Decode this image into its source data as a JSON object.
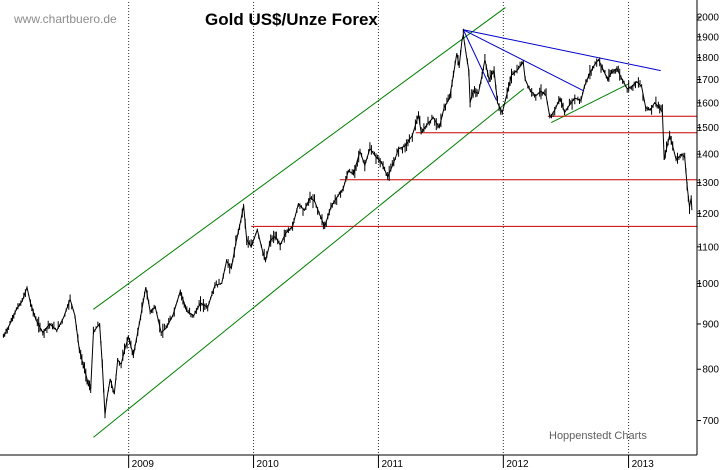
{
  "chart_data": {
    "type": "line",
    "title": "Gold US$/Unze Forex",
    "watermark": "www.chartbuero.de",
    "credit": "Hoppenstedt Charts",
    "y_scale": "log",
    "ylim": [
      640,
      2080
    ],
    "y_ticks": [
      700,
      800,
      900,
      1000,
      1100,
      1200,
      1300,
      1400,
      1500,
      1600,
      1700,
      1800,
      1900,
      2000
    ],
    "x_ticks": [
      {
        "label": "2009",
        "date": "2009-01-01"
      },
      {
        "label": "2010",
        "date": "2010-01-01"
      },
      {
        "label": "2011",
        "date": "2011-01-01"
      },
      {
        "label": "2012",
        "date": "2012-01-01"
      },
      {
        "label": "2013",
        "date": "2013-01-01"
      }
    ],
    "xlim": [
      "2007-12-22",
      "2013-07-20"
    ],
    "grid": "vertical-dotted",
    "series": [
      {
        "values": [
          [
            "2008-01-01",
            870
          ],
          [
            "2008-01-20",
            900
          ],
          [
            "2008-02-08",
            935
          ],
          [
            "2008-02-25",
            955
          ],
          [
            "2008-03-10",
            990
          ],
          [
            "2008-03-20",
            950
          ],
          [
            "2008-04-05",
            910
          ],
          [
            "2008-04-25",
            880
          ],
          [
            "2008-05-15",
            900
          ],
          [
            "2008-06-05",
            885
          ],
          [
            "2008-06-25",
            915
          ],
          [
            "2008-07-14",
            960
          ],
          [
            "2008-07-28",
            920
          ],
          [
            "2008-08-10",
            840
          ],
          [
            "2008-08-25",
            800
          ],
          [
            "2008-09-05",
            770
          ],
          [
            "2008-09-12",
            760
          ],
          [
            "2008-09-20",
            880
          ],
          [
            "2008-09-28",
            890
          ],
          [
            "2008-10-08",
            900
          ],
          [
            "2008-10-16",
            810
          ],
          [
            "2008-10-24",
            710
          ],
          [
            "2008-10-29",
            740
          ],
          [
            "2008-11-08",
            780
          ],
          [
            "2008-11-20",
            750
          ],
          [
            "2008-11-30",
            820
          ],
          [
            "2008-12-10",
            810
          ],
          [
            "2008-12-20",
            840
          ],
          [
            "2008-12-31",
            870
          ],
          [
            "2009-01-15",
            830
          ],
          [
            "2009-02-01",
            900
          ],
          [
            "2009-02-20",
            990
          ],
          [
            "2009-03-05",
            930
          ],
          [
            "2009-03-20",
            940
          ],
          [
            "2009-04-06",
            880
          ],
          [
            "2009-04-20",
            890
          ],
          [
            "2009-05-10",
            920
          ],
          [
            "2009-06-01",
            980
          ],
          [
            "2009-06-20",
            930
          ],
          [
            "2009-07-10",
            920
          ],
          [
            "2009-07-30",
            950
          ],
          [
            "2009-08-20",
            940
          ],
          [
            "2009-09-10",
            995
          ],
          [
            "2009-09-30",
            1000
          ],
          [
            "2009-10-14",
            1060
          ],
          [
            "2009-10-28",
            1040
          ],
          [
            "2009-11-10",
            1110
          ],
          [
            "2009-11-25",
            1180
          ],
          [
            "2009-12-03",
            1225
          ],
          [
            "2009-12-12",
            1120
          ],
          [
            "2009-12-25",
            1100
          ],
          [
            "2010-01-12",
            1150
          ],
          [
            "2010-01-28",
            1085
          ],
          [
            "2010-02-05",
            1060
          ],
          [
            "2010-02-20",
            1120
          ],
          [
            "2010-03-05",
            1130
          ],
          [
            "2010-03-20",
            1105
          ],
          [
            "2010-04-05",
            1140
          ],
          [
            "2010-04-25",
            1160
          ],
          [
            "2010-05-12",
            1230
          ],
          [
            "2010-05-30",
            1210
          ],
          [
            "2010-06-15",
            1250
          ],
          [
            "2010-06-28",
            1240
          ],
          [
            "2010-07-12",
            1200
          ],
          [
            "2010-07-28",
            1160
          ],
          [
            "2010-08-15",
            1220
          ],
          [
            "2010-09-01",
            1250
          ],
          [
            "2010-09-20",
            1280
          ],
          [
            "2010-10-05",
            1340
          ],
          [
            "2010-10-20",
            1330
          ],
          [
            "2010-11-08",
            1410
          ],
          [
            "2010-11-22",
            1360
          ],
          [
            "2010-12-07",
            1420
          ],
          [
            "2010-12-25",
            1390
          ],
          [
            "2011-01-10",
            1370
          ],
          [
            "2011-01-28",
            1320
          ],
          [
            "2011-02-15",
            1370
          ],
          [
            "2011-03-01",
            1420
          ],
          [
            "2011-03-20",
            1430
          ],
          [
            "2011-04-10",
            1470
          ],
          [
            "2011-04-28",
            1550
          ],
          [
            "2011-05-06",
            1480
          ],
          [
            "2011-05-22",
            1510
          ],
          [
            "2011-06-10",
            1540
          ],
          [
            "2011-06-28",
            1500
          ],
          [
            "2011-07-12",
            1580
          ],
          [
            "2011-07-28",
            1620
          ],
          [
            "2011-08-08",
            1720
          ],
          [
            "2011-08-18",
            1820
          ],
          [
            "2011-08-25",
            1760
          ],
          [
            "2011-09-02",
            1880
          ],
          [
            "2011-09-06",
            1910
          ],
          [
            "2011-09-14",
            1820
          ],
          [
            "2011-09-22",
            1740
          ],
          [
            "2011-09-26",
            1600
          ],
          [
            "2011-10-05",
            1650
          ],
          [
            "2011-10-20",
            1640
          ],
          [
            "2011-10-31",
            1720
          ],
          [
            "2011-11-08",
            1790
          ],
          [
            "2011-11-20",
            1700
          ],
          [
            "2011-12-05",
            1740
          ],
          [
            "2011-12-15",
            1600
          ],
          [
            "2011-12-29",
            1560
          ],
          [
            "2012-01-12",
            1640
          ],
          [
            "2012-01-25",
            1720
          ],
          [
            "2012-02-10",
            1740
          ],
          [
            "2012-02-28",
            1780
          ],
          [
            "2012-03-05",
            1700
          ],
          [
            "2012-03-20",
            1650
          ],
          [
            "2012-04-05",
            1630
          ],
          [
            "2012-04-20",
            1650
          ],
          [
            "2012-05-05",
            1630
          ],
          [
            "2012-05-16",
            1540
          ],
          [
            "2012-05-30",
            1570
          ],
          [
            "2012-06-15",
            1620
          ],
          [
            "2012-06-28",
            1560
          ],
          [
            "2012-07-12",
            1590
          ],
          [
            "2012-07-28",
            1620
          ],
          [
            "2012-08-15",
            1610
          ],
          [
            "2012-08-25",
            1670
          ],
          [
            "2012-09-10",
            1730
          ],
          [
            "2012-09-25",
            1770
          ],
          [
            "2012-10-05",
            1790
          ],
          [
            "2012-10-20",
            1740
          ],
          [
            "2012-11-01",
            1700
          ],
          [
            "2012-11-12",
            1730
          ],
          [
            "2012-11-28",
            1750
          ],
          [
            "2012-12-10",
            1710
          ],
          [
            "2012-12-28",
            1660
          ],
          [
            "2013-01-10",
            1670
          ],
          [
            "2013-01-25",
            1690
          ],
          [
            "2013-02-08",
            1670
          ],
          [
            "2013-02-20",
            1580
          ],
          [
            "2013-03-05",
            1570
          ],
          [
            "2013-03-18",
            1600
          ],
          [
            "2013-04-02",
            1580
          ],
          [
            "2013-04-10",
            1560
          ],
          [
            "2013-04-15",
            1380
          ],
          [
            "2013-04-22",
            1420
          ],
          [
            "2013-05-01",
            1470
          ],
          [
            "2013-05-10",
            1430
          ],
          [
            "2013-05-20",
            1380
          ],
          [
            "2013-06-05",
            1400
          ],
          [
            "2013-06-14",
            1390
          ],
          [
            "2013-06-21",
            1290
          ],
          [
            "2013-06-28",
            1220
          ],
          [
            "2013-07-03",
            1250
          ],
          [
            "2013-07-05",
            1210
          ]
        ]
      }
    ],
    "trendlines": [
      {
        "color": "#008000",
        "from": [
          "2008-09-20",
          935
        ],
        "to": [
          "2012-01-07",
          2050
        ]
      },
      {
        "color": "#008000",
        "from": [
          "2008-09-20",
          670
        ],
        "to": [
          "2012-03-01",
          1660
        ]
      },
      {
        "color": "#008000",
        "from": [
          "2012-05-20",
          1520
        ],
        "to": [
          "2012-12-31",
          1680
        ]
      },
      {
        "color": "#0000cc",
        "from": [
          "2011-09-06",
          1935
        ],
        "to": [
          "2013-04-05",
          1740
        ]
      },
      {
        "color": "#0000cc",
        "from": [
          "2011-09-06",
          1935
        ],
        "to": [
          "2012-08-24",
          1650
        ]
      },
      {
        "color": "#0000cc",
        "from": [
          "2011-09-06",
          1935
        ],
        "to": [
          "2011-12-12",
          1610
        ]
      },
      {
        "color": "#cc0000",
        "from": [
          "2012-05-10",
          1545
        ],
        "to": [
          "2013-07-20",
          1545
        ]
      },
      {
        "color": "#cc0000",
        "from": [
          "2011-04-20",
          1480
        ],
        "to": [
          "2013-07-20",
          1480
        ]
      },
      {
        "color": "#cc0000",
        "from": [
          "2010-09-10",
          1310
        ],
        "to": [
          "2013-07-20",
          1310
        ]
      },
      {
        "color": "#cc0000",
        "from": [
          "2009-12-25",
          1160
        ],
        "to": [
          "2013-07-20",
          1160
        ]
      }
    ]
  }
}
